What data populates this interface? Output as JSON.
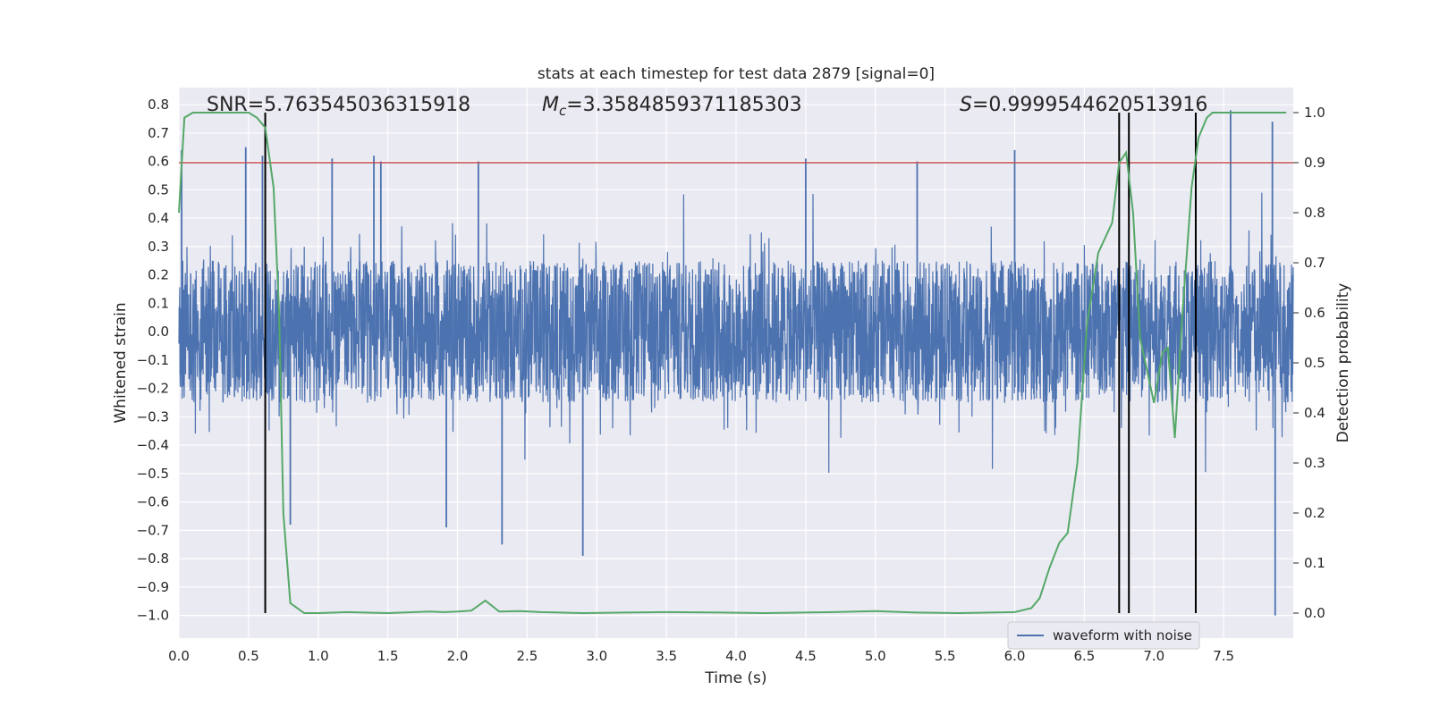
{
  "chart_data": {
    "type": "line",
    "title": "stats at each timestep for test data 2879 [signal=0]",
    "xlabel": "Time (s)",
    "ylabel": "Whitened strain",
    "y2label": "Detection probability",
    "xlim": [
      0.0,
      8.0
    ],
    "ylim": [
      -1.08,
      0.86
    ],
    "y2lim": [
      -0.05,
      1.05
    ],
    "x_ticks": [
      0.0,
      0.5,
      1.0,
      1.5,
      2.0,
      2.5,
      3.0,
      3.5,
      4.0,
      4.5,
      5.0,
      5.5,
      6.0,
      6.5,
      7.0,
      7.5
    ],
    "x_tick_labels": [
      "0.0",
      "0.5",
      "1.0",
      "1.5",
      "2.0",
      "2.5",
      "3.0",
      "3.5",
      "4.0",
      "4.5",
      "5.0",
      "5.5",
      "6.0",
      "6.5",
      "7.0",
      "7.5"
    ],
    "y_ticks": [
      0.8,
      0.7,
      0.6,
      0.5,
      0.4,
      0.3,
      0.2,
      0.1,
      0.0,
      -0.1,
      -0.2,
      -0.3,
      -0.4,
      -0.5,
      -0.6,
      -0.7,
      -0.8,
      -0.9,
      -1.0
    ],
    "y_tick_labels": [
      "0.8",
      "0.7",
      "0.6",
      "0.5",
      "0.4",
      "0.3",
      "0.2",
      "0.1",
      "0.0",
      "−0.1",
      "−0.2",
      "−0.3",
      "−0.4",
      "−0.5",
      "−0.6",
      "−0.7",
      "−0.8",
      "−0.9",
      "−1.0"
    ],
    "y2_ticks": [
      1.0,
      0.9,
      0.8,
      0.7,
      0.6,
      0.5,
      0.4,
      0.3,
      0.2,
      0.1,
      0.0
    ],
    "y2_tick_labels": [
      "1.0",
      "0.9",
      "0.8",
      "0.7",
      "0.6",
      "0.5",
      "0.4",
      "0.3",
      "0.2",
      "0.1",
      "0.0"
    ],
    "grid": true,
    "legend_position": "bottom-right",
    "threshold_y2": 0.9,
    "vertical_markers_x": [
      0.62,
      6.75,
      6.82,
      7.3
    ],
    "series": [
      {
        "name": "waveform with noise",
        "kind": "noise",
        "color": "#4c72b0",
        "amplitude_typical": 0.25,
        "peaks": [
          {
            "x": 0.02,
            "y": 0.64
          },
          {
            "x": 0.48,
            "y": 0.65
          },
          {
            "x": 0.6,
            "y": 0.62
          },
          {
            "x": 1.1,
            "y": 0.61
          },
          {
            "x": 1.4,
            "y": 0.62
          },
          {
            "x": 1.45,
            "y": 0.6
          },
          {
            "x": 2.15,
            "y": 0.6
          },
          {
            "x": 4.5,
            "y": 0.61
          },
          {
            "x": 5.3,
            "y": 0.6
          },
          {
            "x": 6.0,
            "y": 0.64
          },
          {
            "x": 7.3,
            "y": 0.71
          },
          {
            "x": 7.55,
            "y": 0.78
          },
          {
            "x": 7.85,
            "y": 0.74
          },
          {
            "x": 1.92,
            "y": -0.69
          },
          {
            "x": 2.32,
            "y": -0.75
          },
          {
            "x": 2.9,
            "y": -0.79
          },
          {
            "x": 7.87,
            "y": -1.0
          },
          {
            "x": 0.8,
            "y": -0.68
          }
        ]
      },
      {
        "name": "",
        "kind": "probability",
        "color": "#55a868",
        "axis": "y2",
        "x": [
          0.0,
          0.04,
          0.1,
          0.2,
          0.3,
          0.4,
          0.5,
          0.56,
          0.62,
          0.68,
          0.72,
          0.75,
          0.8,
          0.9,
          1.0,
          1.2,
          1.5,
          1.8,
          1.9,
          2.0,
          2.1,
          2.2,
          2.3,
          2.45,
          2.6,
          2.9,
          3.2,
          3.5,
          3.9,
          4.2,
          4.7,
          5.0,
          5.3,
          5.6,
          6.0,
          6.12,
          6.18,
          6.25,
          6.32,
          6.38,
          6.45,
          6.52,
          6.6,
          6.7,
          6.75,
          6.8,
          6.85,
          6.9,
          7.0,
          7.06,
          7.1,
          7.15,
          7.2,
          7.27,
          7.32,
          7.38,
          7.42,
          7.5,
          7.6,
          7.7,
          7.8,
          7.95
        ],
        "y": [
          0.8,
          0.99,
          1.0,
          1.0,
          1.0,
          1.0,
          1.0,
          0.99,
          0.97,
          0.85,
          0.6,
          0.2,
          0.02,
          0.0,
          0.0,
          0.002,
          0.0,
          0.003,
          0.002,
          0.003,
          0.005,
          0.025,
          0.003,
          0.004,
          0.002,
          0.0,
          0.001,
          0.002,
          0.001,
          0.0,
          0.002,
          0.004,
          0.001,
          0.0,
          0.002,
          0.01,
          0.03,
          0.09,
          0.14,
          0.16,
          0.3,
          0.58,
          0.72,
          0.78,
          0.9,
          0.92,
          0.8,
          0.55,
          0.42,
          0.52,
          0.53,
          0.35,
          0.58,
          0.85,
          0.95,
          0.99,
          1.0,
          1.0,
          1.0,
          1.0,
          1.0,
          1.0
        ]
      },
      {
        "name": "",
        "kind": "threshold",
        "color": "#c44e52",
        "axis": "y2"
      },
      {
        "name": "",
        "kind": "markers",
        "color": "#000000",
        "axis": "y2"
      }
    ],
    "annotations": [
      {
        "label": "SNR",
        "text": "SNR=5.763545036315918"
      },
      {
        "label": "Mc",
        "text_main": "M",
        "text_sub": "c",
        "text_rest": "=3.3584859371185303"
      },
      {
        "label": "S",
        "text_main": "S",
        "text_rest": "=0.9999544620513916"
      }
    ]
  },
  "colors": {
    "axes_bg": "#eaeaf2",
    "grid": "#ffffff",
    "text": "#262626"
  }
}
